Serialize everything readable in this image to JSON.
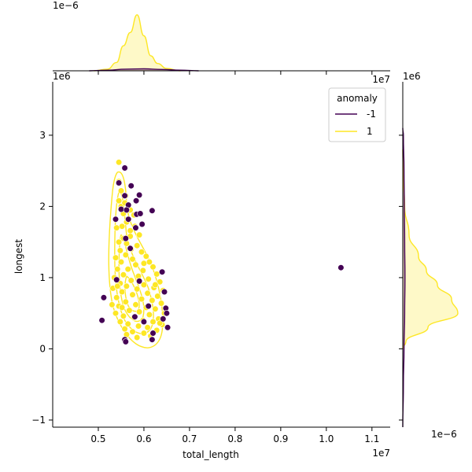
{
  "chart_data": {
    "type": "scatter",
    "xlabel": "total_length",
    "ylabel": "longest",
    "x_offset_label": "1e7",
    "y_offset_label": "1e6",
    "x_scale": 10000000,
    "y_scale": 1000000,
    "xlim": [
      4.0,
      11.4
    ],
    "ylim": [
      -1.1,
      3.75
    ],
    "x_ticks": [
      {
        "value": 5,
        "label": "0.5"
      },
      {
        "value": 6,
        "label": "0.6"
      },
      {
        "value": 7,
        "label": "0.7"
      },
      {
        "value": 8,
        "label": "0.8"
      },
      {
        "value": 9,
        "label": "0.9"
      },
      {
        "value": 10,
        "label": "1.0"
      },
      {
        "value": 11,
        "label": "1.1"
      }
    ],
    "y_ticks": [
      {
        "value": -1,
        "label": "−1"
      },
      {
        "value": 0,
        "label": "0"
      },
      {
        "value": 1,
        "label": "1"
      },
      {
        "value": 2,
        "label": "2"
      },
      {
        "value": 3,
        "label": "3"
      }
    ],
    "legend": {
      "title": "anomaly",
      "placement": "top-right",
      "entries": [
        {
          "label": "-1",
          "color": "#440154"
        },
        {
          "label": "1",
          "color": "#fde725"
        }
      ]
    },
    "series": [
      {
        "name": "-1",
        "color": "#440154",
        "points": [
          [
            5.12,
            0.72
          ],
          [
            5.08,
            0.4
          ],
          [
            5.58,
            2.54
          ],
          [
            5.45,
            2.33
          ],
          [
            5.58,
            2.15
          ],
          [
            5.72,
            2.29
          ],
          [
            5.9,
            2.16
          ],
          [
            5.66,
            2.02
          ],
          [
            5.83,
            2.08
          ],
          [
            5.5,
            1.96
          ],
          [
            5.62,
            1.95
          ],
          [
            5.84,
            1.89
          ],
          [
            5.92,
            1.9
          ],
          [
            6.18,
            1.94
          ],
          [
            5.38,
            1.82
          ],
          [
            5.66,
            1.82
          ],
          [
            5.96,
            1.75
          ],
          [
            5.82,
            1.7
          ],
          [
            5.6,
            1.55
          ],
          [
            5.7,
            1.41
          ],
          [
            6.4,
            1.08
          ],
          [
            5.4,
            0.97
          ],
          [
            6.45,
            0.8
          ],
          [
            6.48,
            0.57
          ],
          [
            6.5,
            0.5
          ],
          [
            6.52,
            0.3
          ],
          [
            6.42,
            0.42
          ],
          [
            6.2,
            0.22
          ],
          [
            6.18,
            0.13
          ],
          [
            5.58,
            0.13
          ],
          [
            5.6,
            0.1
          ],
          [
            6.0,
            0.38
          ],
          [
            5.8,
            0.45
          ],
          [
            10.32,
            1.14
          ],
          [
            6.1,
            0.6
          ],
          [
            5.9,
            0.95
          ]
        ]
      },
      {
        "name": "1",
        "color": "#fde725",
        "points": [
          [
            5.45,
            2.62
          ],
          [
            5.45,
            2.35
          ],
          [
            5.5,
            2.22
          ],
          [
            5.6,
            2.15
          ],
          [
            5.45,
            2.08
          ],
          [
            5.5,
            2.0
          ],
          [
            5.7,
            1.95
          ],
          [
            5.55,
            1.9
          ],
          [
            5.78,
            1.88
          ],
          [
            5.62,
            1.78
          ],
          [
            5.52,
            1.72
          ],
          [
            5.4,
            1.7
          ],
          [
            5.8,
            1.72
          ],
          [
            5.9,
            1.6
          ],
          [
            5.7,
            1.58
          ],
          [
            5.55,
            1.55
          ],
          [
            5.45,
            1.5
          ],
          [
            5.62,
            1.48
          ],
          [
            5.85,
            1.45
          ],
          [
            5.72,
            1.4
          ],
          [
            5.48,
            1.38
          ],
          [
            5.95,
            1.36
          ],
          [
            6.05,
            1.3
          ],
          [
            5.6,
            1.32
          ],
          [
            5.38,
            1.28
          ],
          [
            5.75,
            1.26
          ],
          [
            6.12,
            1.22
          ],
          [
            5.5,
            1.22
          ],
          [
            5.82,
            1.18
          ],
          [
            6.2,
            1.15
          ],
          [
            5.42,
            1.12
          ],
          [
            5.65,
            1.12
          ],
          [
            5.98,
            1.1
          ],
          [
            6.28,
            1.05
          ],
          [
            5.55,
            1.04
          ],
          [
            5.88,
            1.02
          ],
          [
            5.35,
            1.0
          ],
          [
            6.1,
            0.98
          ],
          [
            5.72,
            0.96
          ],
          [
            6.35,
            0.94
          ],
          [
            5.48,
            0.92
          ],
          [
            6.0,
            0.9
          ],
          [
            5.62,
            0.88
          ],
          [
            6.22,
            0.86
          ],
          [
            5.32,
            0.85
          ],
          [
            5.85,
            0.84
          ],
          [
            6.42,
            0.82
          ],
          [
            5.52,
            0.8
          ],
          [
            6.08,
            0.78
          ],
          [
            5.75,
            0.76
          ],
          [
            6.3,
            0.74
          ],
          [
            5.4,
            0.72
          ],
          [
            5.95,
            0.7
          ],
          [
            6.18,
            0.68
          ],
          [
            5.6,
            0.66
          ],
          [
            6.38,
            0.64
          ],
          [
            5.82,
            0.62
          ],
          [
            5.45,
            0.6
          ],
          [
            6.05,
            0.58
          ],
          [
            6.25,
            0.56
          ],
          [
            5.68,
            0.54
          ],
          [
            5.9,
            0.52
          ],
          [
            6.45,
            0.5
          ],
          [
            5.38,
            0.5
          ],
          [
            6.12,
            0.48
          ],
          [
            5.55,
            0.46
          ],
          [
            5.78,
            0.44
          ],
          [
            6.32,
            0.42
          ],
          [
            5.98,
            0.4
          ],
          [
            6.2,
            0.38
          ],
          [
            5.48,
            0.38
          ],
          [
            5.65,
            0.35
          ],
          [
            6.4,
            0.34
          ],
          [
            5.88,
            0.32
          ],
          [
            6.08,
            0.3
          ],
          [
            5.58,
            0.28
          ],
          [
            6.28,
            0.26
          ],
          [
            5.75,
            0.24
          ],
          [
            6.0,
            0.22
          ],
          [
            5.62,
            0.2
          ],
          [
            6.15,
            0.18
          ],
          [
            5.85,
            0.16
          ],
          [
            6.35,
            0.36
          ],
          [
            5.3,
            0.62
          ],
          [
            5.42,
            0.88
          ],
          [
            6.0,
            1.2
          ],
          [
            5.7,
            1.66
          ],
          [
            5.58,
            2.05
          ],
          [
            6.25,
            0.9
          ],
          [
            5.52,
            0.58
          ]
        ]
      }
    ],
    "marginal_x": {
      "scale_label": "1e−6",
      "series": [
        {
          "name": "1",
          "color": "#fde725",
          "x": [
            4.9,
            5.2,
            5.4,
            5.55,
            5.7,
            5.85,
            6.0,
            6.15,
            6.3,
            6.5,
            6.8
          ],
          "density": [
            0.0,
            0.05,
            0.25,
            0.75,
            1.15,
            1.68,
            1.05,
            0.45,
            0.22,
            0.07,
            0.0
          ]
        },
        {
          "name": "-1",
          "color": "#440154",
          "x": [
            4.8,
            5.2,
            5.6,
            6.0,
            6.4,
            6.8,
            7.2
          ],
          "density": [
            0.0,
            0.02,
            0.05,
            0.06,
            0.04,
            0.02,
            0.0
          ]
        }
      ]
    },
    "marginal_y": {
      "scale_label": "1e−6",
      "series": [
        {
          "name": "1",
          "color": "#fde725",
          "y": [
            0.0,
            0.1,
            0.3,
            0.5,
            0.7,
            0.9,
            1.1,
            1.3,
            1.6,
            2.0,
            2.4,
            2.8
          ],
          "density": [
            0.0,
            0.1,
            0.8,
            1.75,
            1.55,
            1.1,
            0.75,
            0.5,
            0.2,
            0.06,
            0.02,
            0.0
          ]
        },
        {
          "name": "-1",
          "color": "#440154",
          "y": [
            -1.1,
            -0.5,
            0.0,
            0.5,
            1.0,
            1.5,
            2.0,
            2.5,
            3.0,
            3.1
          ],
          "density": [
            0.0,
            0.02,
            0.04,
            0.06,
            0.07,
            0.06,
            0.05,
            0.04,
            0.02,
            0.0
          ]
        }
      ]
    }
  }
}
